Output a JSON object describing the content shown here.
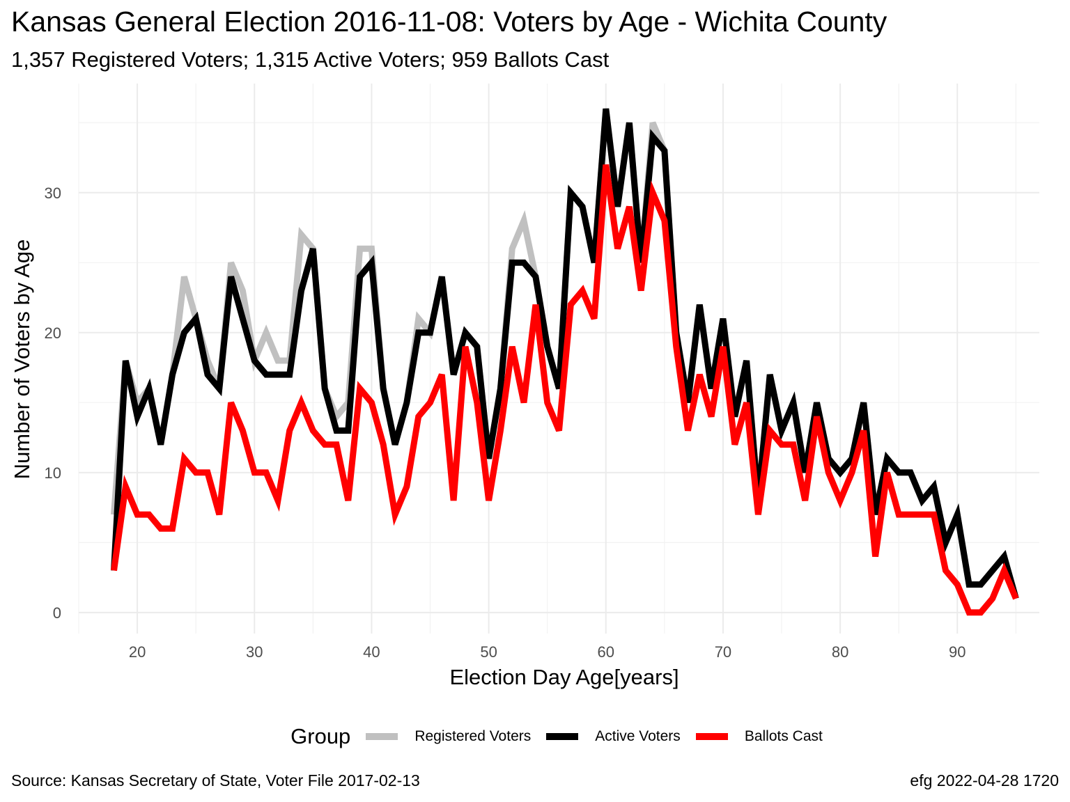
{
  "chart_data": {
    "type": "line",
    "title": "Kansas General Election 2016-11-08:  Voters by Age - Wichita County",
    "subtitle": "1,357 Registered Voters; 1,315 Active Voters; 959 Ballots Cast",
    "xlabel": "Election Day Age[years]",
    "ylabel": "Number of Voters by Age",
    "xlim": [
      15,
      97
    ],
    "ylim": [
      -1.5,
      37.8
    ],
    "xticks": [
      20,
      30,
      40,
      50,
      60,
      70,
      80,
      90
    ],
    "yticks": [
      0,
      10,
      20,
      30
    ],
    "grid": true,
    "legend": {
      "title": "Group",
      "position": "bottom"
    },
    "x": [
      18,
      19,
      20,
      21,
      22,
      23,
      24,
      25,
      26,
      27,
      28,
      29,
      30,
      31,
      32,
      33,
      34,
      35,
      36,
      37,
      38,
      39,
      40,
      41,
      42,
      43,
      44,
      45,
      46,
      47,
      48,
      49,
      50,
      51,
      52,
      53,
      54,
      55,
      56,
      57,
      58,
      59,
      60,
      61,
      62,
      63,
      64,
      65,
      66,
      67,
      68,
      69,
      70,
      71,
      72,
      73,
      74,
      75,
      76,
      77,
      78,
      79,
      80,
      81,
      82,
      83,
      84,
      85,
      86,
      87,
      88,
      89,
      90,
      91,
      92,
      93,
      94,
      95
    ],
    "series": [
      {
        "name": "Registered Voters",
        "color": "#c0c0c0",
        "values": [
          7,
          18,
          15,
          16,
          12,
          17,
          24,
          21,
          18,
          16,
          25,
          23,
          18,
          20,
          18,
          18,
          27,
          26,
          16,
          14,
          15,
          26,
          26,
          16,
          12,
          15,
          21,
          20,
          24,
          17,
          20,
          19,
          11,
          16,
          26,
          28,
          24,
          19,
          16,
          30,
          29,
          25,
          36,
          29,
          35,
          25,
          35,
          33,
          20,
          15,
          22,
          16,
          21,
          14,
          18,
          8,
          17,
          13,
          15,
          10,
          15,
          11,
          10,
          11,
          15,
          7,
          11,
          10,
          10,
          8,
          9,
          5,
          7,
          2,
          2,
          3,
          4,
          1
        ]
      },
      {
        "name": "Active Voters",
        "color": "#000000",
        "values": [
          3,
          18,
          14,
          16,
          12,
          17,
          20,
          21,
          17,
          16,
          24,
          21,
          18,
          17,
          17,
          17,
          23,
          26,
          16,
          13,
          13,
          24,
          25,
          16,
          12,
          15,
          20,
          20,
          24,
          17,
          20,
          19,
          11,
          16,
          25,
          25,
          24,
          19,
          16,
          30,
          29,
          25,
          36,
          29,
          35,
          25,
          34,
          33,
          20,
          15,
          22,
          16,
          21,
          14,
          18,
          8,
          17,
          13,
          15,
          10,
          15,
          11,
          10,
          11,
          15,
          7,
          11,
          10,
          10,
          8,
          9,
          5,
          7,
          2,
          2,
          3,
          4,
          1
        ]
      },
      {
        "name": "Ballots Cast",
        "color": "#ff0000",
        "values": [
          3,
          9,
          7,
          7,
          6,
          6,
          11,
          10,
          10,
          7,
          15,
          13,
          10,
          10,
          8,
          13,
          15,
          13,
          12,
          12,
          8,
          16,
          15,
          12,
          7,
          9,
          14,
          15,
          17,
          8,
          19,
          15,
          8,
          13,
          19,
          15,
          22,
          15,
          13,
          22,
          23,
          21,
          32,
          26,
          29,
          23,
          30,
          28,
          19,
          13,
          17,
          14,
          19,
          12,
          15,
          7,
          13,
          12,
          12,
          8,
          14,
          10,
          8,
          10,
          13,
          4,
          10,
          7,
          7,
          7,
          7,
          3,
          2,
          0,
          0,
          1,
          3,
          1
        ]
      }
    ]
  },
  "footer": {
    "source": "Source:  Kansas Secretary of State, Voter File  2017-02-13",
    "stamp": "efg 2022-04-28 1720"
  }
}
